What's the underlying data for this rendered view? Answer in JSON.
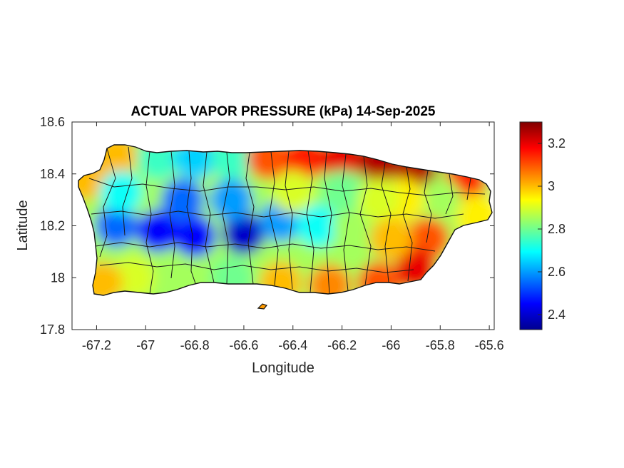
{
  "chart_data": {
    "type": "heatmap",
    "title": "ACTUAL VAPOR PRESSURE (kPa) 14-Sep-2025",
    "xlabel": "Longitude",
    "ylabel": "Latitude",
    "xlim": [
      -67.3,
      -65.58
    ],
    "ylim": [
      17.8,
      18.6
    ],
    "x_ticks": [
      "-67.2",
      "-67",
      "-66.8",
      "-66.6",
      "-66.4",
      "-66.2",
      "-66",
      "-65.8",
      "-65.6"
    ],
    "y_ticks": [
      "18.6",
      "18.4",
      "18.2",
      "18",
      "17.8"
    ],
    "colorbar": {
      "colormap": "jet",
      "clim": [
        2.33,
        3.3
      ],
      "ticks": [
        "3.2",
        "3",
        "2.8",
        "2.6",
        "2.4"
      ]
    },
    "field_samples": [
      {
        "lon": -67.25,
        "lat": 18.38,
        "value": 3.0
      },
      {
        "lon": -67.12,
        "lat": 18.47,
        "value": 3.0
      },
      {
        "lon": -66.95,
        "lat": 18.46,
        "value": 2.75
      },
      {
        "lon": -66.8,
        "lat": 18.46,
        "value": 2.65
      },
      {
        "lon": -66.65,
        "lat": 18.46,
        "value": 2.75
      },
      {
        "lon": -66.5,
        "lat": 18.46,
        "value": 3.1
      },
      {
        "lon": -66.35,
        "lat": 18.46,
        "value": 3.15
      },
      {
        "lon": -66.2,
        "lat": 18.46,
        "value": 3.2
      },
      {
        "lon": -66.05,
        "lat": 18.45,
        "value": 3.25
      },
      {
        "lon": -65.9,
        "lat": 18.41,
        "value": 3.25
      },
      {
        "lon": -65.7,
        "lat": 18.37,
        "value": 3.15
      },
      {
        "lon": -65.65,
        "lat": 18.24,
        "value": 2.95
      },
      {
        "lon": -65.8,
        "lat": 18.3,
        "value": 2.85
      },
      {
        "lon": -65.95,
        "lat": 18.3,
        "value": 2.95
      },
      {
        "lon": -65.85,
        "lat": 18.15,
        "value": 3.1
      },
      {
        "lon": -65.9,
        "lat": 18.03,
        "value": 3.2
      },
      {
        "lon": -66.05,
        "lat": 17.98,
        "value": 3.1
      },
      {
        "lon": -66.25,
        "lat": 17.97,
        "value": 3.05
      },
      {
        "lon": -66.45,
        "lat": 17.98,
        "value": 3.0
      },
      {
        "lon": -66.65,
        "lat": 18.0,
        "value": 2.8
      },
      {
        "lon": -66.85,
        "lat": 18.0,
        "value": 2.85
      },
      {
        "lon": -67.05,
        "lat": 18.0,
        "value": 2.9
      },
      {
        "lon": -67.18,
        "lat": 17.98,
        "value": 3.0
      },
      {
        "lon": -67.12,
        "lat": 18.2,
        "value": 2.55
      },
      {
        "lon": -66.95,
        "lat": 18.18,
        "value": 2.45
      },
      {
        "lon": -66.8,
        "lat": 18.16,
        "value": 2.45
      },
      {
        "lon": -66.6,
        "lat": 18.17,
        "value": 2.4
      },
      {
        "lon": -66.45,
        "lat": 18.22,
        "value": 2.6
      },
      {
        "lon": -66.3,
        "lat": 18.2,
        "value": 2.7
      },
      {
        "lon": -66.15,
        "lat": 18.2,
        "value": 2.85
      },
      {
        "lon": -66.0,
        "lat": 18.15,
        "value": 3.0
      },
      {
        "lon": -66.85,
        "lat": 18.3,
        "value": 2.55
      },
      {
        "lon": -66.65,
        "lat": 18.3,
        "value": 2.6
      },
      {
        "lon": -66.4,
        "lat": 18.33,
        "value": 2.9
      },
      {
        "lon": -66.2,
        "lat": 18.33,
        "value": 2.8
      },
      {
        "lon": -66.05,
        "lat": 18.3,
        "value": 2.9
      },
      {
        "lon": -67.1,
        "lat": 18.33,
        "value": 2.7
      }
    ]
  }
}
